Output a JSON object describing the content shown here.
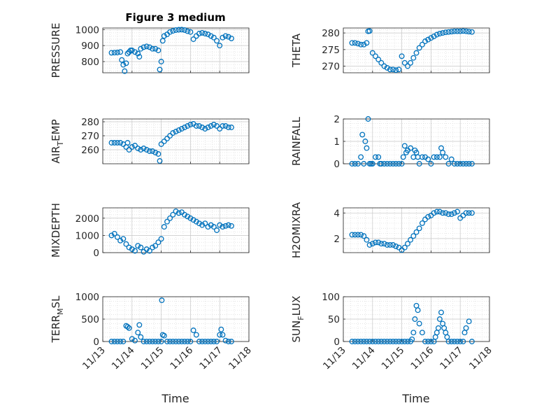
{
  "title": "Figure 3 medium",
  "x_ticks": [
    "11/13",
    "11/14",
    "11/15",
    "11/16",
    "11/17",
    "11/18"
  ],
  "x_label": "Time",
  "marker_color": "#0072BD",
  "chart_data": [
    {
      "type": "scatter",
      "ylabel": "PRESSURE",
      "ylim": [
        730,
        1010
      ],
      "yticks": [
        800,
        900,
        1000
      ],
      "x": [
        13.3,
        13.4,
        13.5,
        13.6,
        13.65,
        13.7,
        13.75,
        13.8,
        13.85,
        13.9,
        13.95,
        14.0,
        14.1,
        14.2,
        14.25,
        14.3,
        14.4,
        14.5,
        14.6,
        14.7,
        14.8,
        14.9,
        14.95,
        15.0,
        15.05,
        15.1,
        15.2,
        15.3,
        15.4,
        15.5,
        15.6,
        15.7,
        15.8,
        15.9,
        16.0,
        16.1,
        16.2,
        16.3,
        16.4,
        16.5,
        16.6,
        16.7,
        16.8,
        16.9,
        17.0,
        17.1,
        17.2,
        17.3,
        17.4
      ],
      "y": [
        855,
        856,
        857,
        860,
        810,
        780,
        740,
        790,
        850,
        860,
        870,
        870,
        860,
        850,
        830,
        880,
        890,
        895,
        890,
        880,
        880,
        870,
        750,
        800,
        930,
        960,
        970,
        985,
        992,
        997,
        999,
        1000,
        997,
        990,
        985,
        940,
        960,
        975,
        980,
        975,
        970,
        960,
        950,
        930,
        900,
        950,
        960,
        955,
        945
      ]
    },
    {
      "type": "scatter",
      "ylabel": "THETA",
      "ylim": [
        268,
        281.5
      ],
      "yticks": [
        270,
        275,
        280
      ],
      "x": [
        13.3,
        13.4,
        13.5,
        13.6,
        13.7,
        13.8,
        13.85,
        13.9,
        14.0,
        14.1,
        14.2,
        14.3,
        14.4,
        14.5,
        14.6,
        14.7,
        14.8,
        14.9,
        15.0,
        15.1,
        15.2,
        15.3,
        15.4,
        15.5,
        15.6,
        15.7,
        15.8,
        15.9,
        16.0,
        16.1,
        16.2,
        16.3,
        16.4,
        16.5,
        16.6,
        16.7,
        16.8,
        16.9,
        17.0,
        17.1,
        17.2,
        17.3,
        17.4
      ],
      "y": [
        277,
        277,
        276.8,
        276.5,
        276.5,
        277,
        280.5,
        280.6,
        274,
        273,
        272,
        271,
        270,
        269.5,
        269,
        269,
        268.8,
        269,
        273,
        271,
        270,
        271,
        272.5,
        274,
        275.5,
        276.5,
        277.5,
        278,
        278.5,
        279,
        279.5,
        279.8,
        280,
        280.2,
        280.3,
        280.4,
        280.5,
        280.5,
        280.5,
        280.6,
        280.5,
        280.4,
        280.3
      ]
    },
    {
      "type": "scatter",
      "ylabel": "AIR_TEMP",
      "ylim": [
        250,
        282
      ],
      "yticks": [
        260,
        270,
        280
      ],
      "x": [
        13.3,
        13.4,
        13.5,
        13.6,
        13.7,
        13.8,
        13.85,
        13.9,
        14.0,
        14.1,
        14.2,
        14.3,
        14.4,
        14.5,
        14.6,
        14.7,
        14.8,
        14.9,
        14.95,
        15.0,
        15.1,
        15.2,
        15.3,
        15.4,
        15.5,
        15.6,
        15.7,
        15.8,
        15.9,
        16.0,
        16.1,
        16.2,
        16.3,
        16.4,
        16.5,
        16.6,
        16.7,
        16.8,
        16.9,
        17.0,
        17.1,
        17.2,
        17.3,
        17.4
      ],
      "y": [
        265,
        265,
        265,
        265,
        264,
        262,
        265,
        260,
        262,
        263,
        261,
        260,
        261,
        260,
        259,
        259,
        258,
        257,
        252,
        264,
        266,
        268,
        270,
        272,
        273,
        274,
        275,
        276,
        277,
        278,
        278.5,
        277,
        277,
        276,
        275,
        276,
        277,
        278,
        277,
        275,
        277,
        277,
        276,
        276
      ]
    },
    {
      "type": "scatter",
      "ylabel": "RAINFALL",
      "ylim": [
        0,
        2
      ],
      "yticks": [
        0,
        1,
        2
      ],
      "x": [
        13.3,
        13.4,
        13.5,
        13.6,
        13.65,
        13.7,
        13.75,
        13.8,
        13.85,
        13.9,
        13.95,
        14.0,
        14.1,
        14.2,
        14.25,
        14.3,
        14.4,
        14.5,
        14.6,
        14.7,
        14.8,
        14.9,
        15.0,
        15.05,
        15.1,
        15.15,
        15.2,
        15.3,
        15.4,
        15.45,
        15.5,
        15.55,
        15.6,
        15.7,
        15.8,
        15.9,
        16.0,
        16.1,
        16.2,
        16.3,
        16.35,
        16.4,
        16.5,
        16.6,
        16.7,
        16.8,
        16.9,
        17.0,
        17.1,
        17.2,
        17.3,
        17.4
      ],
      "y": [
        0,
        0,
        0,
        0.3,
        1.3,
        0,
        1,
        0.7,
        2,
        0,
        0,
        0,
        0.3,
        0.3,
        0,
        0,
        0,
        0,
        0,
        0,
        0,
        0,
        0,
        0.3,
        0.8,
        0.5,
        0.6,
        0.7,
        0.3,
        0.6,
        0.5,
        0.3,
        0,
        0.3,
        0.3,
        0.2,
        0,
        0.3,
        0.3,
        0.3,
        0.7,
        0.5,
        0.3,
        0,
        0.2,
        0,
        0,
        0,
        0,
        0,
        0,
        0
      ]
    },
    {
      "type": "scatter",
      "ylabel": "MIXDEPTH",
      "ylim": [
        0,
        2600
      ],
      "yticks": [
        0,
        1000,
        2000
      ],
      "x": [
        13.3,
        13.4,
        13.5,
        13.6,
        13.7,
        13.8,
        13.9,
        14.0,
        14.1,
        14.2,
        14.3,
        14.4,
        14.5,
        14.6,
        14.7,
        14.8,
        14.9,
        15.0,
        15.1,
        15.2,
        15.3,
        15.4,
        15.5,
        15.6,
        15.7,
        15.8,
        15.9,
        16.0,
        16.1,
        16.2,
        16.3,
        16.4,
        16.5,
        16.6,
        16.7,
        16.8,
        16.9,
        17.0,
        17.1,
        17.2,
        17.3,
        17.4
      ],
      "y": [
        1000,
        1100,
        900,
        700,
        800,
        500,
        300,
        200,
        100,
        400,
        300,
        50,
        200,
        100,
        300,
        400,
        600,
        800,
        1500,
        1800,
        2000,
        2200,
        2400,
        2300,
        2350,
        2200,
        2100,
        2000,
        1900,
        1800,
        1700,
        1600,
        1700,
        1500,
        1600,
        1500,
        1300,
        1600,
        1500,
        1550,
        1600,
        1550
      ]
    },
    {
      "type": "scatter",
      "ylabel": "H2OMIXRA",
      "ylim": [
        0.9,
        4.4
      ],
      "yticks": [
        2,
        4
      ],
      "x": [
        13.3,
        13.4,
        13.5,
        13.6,
        13.7,
        13.8,
        13.9,
        14.0,
        14.1,
        14.2,
        14.3,
        14.4,
        14.5,
        14.6,
        14.7,
        14.8,
        14.9,
        15.0,
        15.1,
        15.2,
        15.3,
        15.4,
        15.5,
        15.6,
        15.7,
        15.8,
        15.9,
        16.0,
        16.1,
        16.2,
        16.3,
        16.4,
        16.5,
        16.6,
        16.7,
        16.8,
        16.9,
        17.0,
        17.1,
        17.2,
        17.3,
        17.4
      ],
      "y": [
        2.3,
        2.3,
        2.3,
        2.3,
        2.2,
        1.9,
        1.5,
        1.6,
        1.7,
        1.7,
        1.6,
        1.6,
        1.5,
        1.5,
        1.5,
        1.4,
        1.3,
        1.1,
        1.3,
        1.6,
        1.9,
        2.2,
        2.5,
        2.8,
        3.2,
        3.5,
        3.7,
        3.8,
        4.0,
        4.1,
        4.1,
        4.0,
        4.0,
        3.9,
        3.9,
        4.0,
        4.1,
        3.6,
        3.8,
        4.0,
        4.0,
        4.0
      ]
    },
    {
      "type": "scatter",
      "ylabel": "TERR_MSL",
      "ylim": [
        0,
        1000
      ],
      "yticks": [
        0,
        500,
        1000
      ],
      "x": [
        13.3,
        13.4,
        13.5,
        13.6,
        13.7,
        13.8,
        13.85,
        13.9,
        14.0,
        14.1,
        14.2,
        14.25,
        14.3,
        14.4,
        14.5,
        14.6,
        14.7,
        14.8,
        14.9,
        15.0,
        15.02,
        15.05,
        15.1,
        15.2,
        15.3,
        15.4,
        15.5,
        15.6,
        15.7,
        15.8,
        15.9,
        16.0,
        16.1,
        16.2,
        16.3,
        16.4,
        16.5,
        16.6,
        16.7,
        16.8,
        16.9,
        17.0,
        17.05,
        17.1,
        17.2,
        17.3,
        17.4
      ],
      "y": [
        0,
        0,
        0,
        0,
        0,
        350,
        330,
        300,
        60,
        20,
        200,
        370,
        100,
        0,
        0,
        0,
        0,
        0,
        0,
        0,
        920,
        150,
        130,
        0,
        0,
        0,
        0,
        0,
        0,
        0,
        0,
        0,
        250,
        150,
        0,
        0,
        0,
        0,
        0,
        0,
        0,
        150,
        270,
        150,
        20,
        0,
        0
      ]
    },
    {
      "type": "scatter",
      "ylabel": "SUN_FLUX",
      "ylim": [
        0,
        100
      ],
      "yticks": [
        0,
        50,
        100
      ],
      "x": [
        13.3,
        13.4,
        13.5,
        13.6,
        13.7,
        13.8,
        13.9,
        14.0,
        14.1,
        14.2,
        14.3,
        14.4,
        14.5,
        14.6,
        14.7,
        14.8,
        14.9,
        15.0,
        15.1,
        15.2,
        15.3,
        15.35,
        15.4,
        15.45,
        15.5,
        15.55,
        15.6,
        15.7,
        15.8,
        15.9,
        16.0,
        16.1,
        16.15,
        16.2,
        16.25,
        16.3,
        16.35,
        16.4,
        16.45,
        16.5,
        16.55,
        16.6,
        16.7,
        16.8,
        16.9,
        17.0,
        17.1,
        17.15,
        17.2,
        17.3,
        17.4
      ],
      "y": [
        0,
        0,
        0,
        0,
        0,
        0,
        0,
        0,
        0,
        0,
        0,
        0,
        0,
        0,
        0,
        0,
        0,
        0,
        0,
        0,
        0,
        5,
        20,
        50,
        80,
        70,
        40,
        20,
        0,
        0,
        0,
        0,
        10,
        20,
        30,
        50,
        65,
        40,
        30,
        20,
        10,
        0,
        0,
        0,
        0,
        0,
        0,
        20,
        30,
        45,
        0
      ]
    }
  ]
}
